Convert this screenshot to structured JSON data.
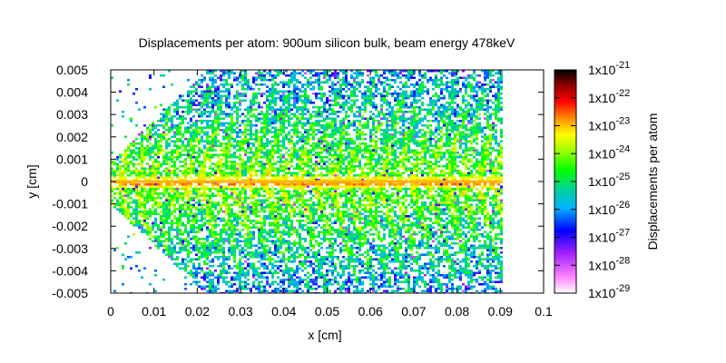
{
  "chart_data": {
    "type": "heatmap",
    "title": "Displacements per atom: 900um silicon bulk, beam energy 478keV",
    "xlabel": "x [cm]",
    "ylabel": "y [cm]",
    "colorbar_label": "Displacements per atom",
    "xlim": [
      0,
      0.1
    ],
    "ylim": [
      -0.005,
      0.005
    ],
    "x_ticks": [
      "0",
      "0.01",
      "0.02",
      "0.03",
      "0.04",
      "0.05",
      "0.06",
      "0.07",
      "0.08",
      "0.09",
      "0.1"
    ],
    "y_ticks": [
      "0.005",
      "0.004",
      "0.003",
      "0.002",
      "0.001",
      "0",
      "-0.001",
      "-0.002",
      "-0.003",
      "-0.004",
      "-0.005"
    ],
    "colorbar": {
      "scale": "log",
      "range": [
        1e-29,
        1e-21
      ],
      "tick_bases": [
        "1x10",
        "1x10",
        "1x10",
        "1x10",
        "1x10",
        "1x10",
        "1x10",
        "1x10",
        "1x10"
      ],
      "tick_exponents": [
        "-21",
        "-22",
        "-23",
        "-24",
        "-25",
        "-26",
        "-27",
        "-28",
        "-29"
      ],
      "colors": [
        "#000000",
        "#8b0000",
        "#ff0000",
        "#ff8000",
        "#ffff00",
        "#80ff00",
        "#00ff00",
        "#00c8a0",
        "#00c8ff",
        "#0000ff",
        "#8000ff",
        "#ff00ff",
        "#ffffff"
      ]
    },
    "data_extent_x": [
      0,
      0.09
    ],
    "beam_axis_y": 0
  }
}
